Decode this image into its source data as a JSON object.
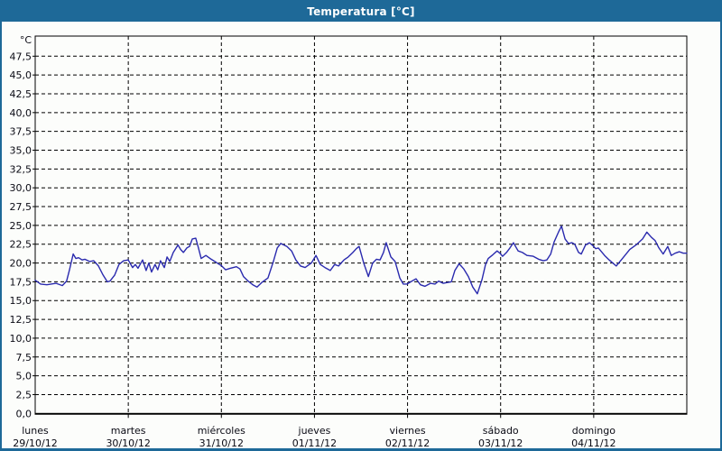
{
  "window": {
    "title": "Temperatura [°C]",
    "title_bar_color": "#1e6998",
    "border_color": "#1e6998",
    "background_color": "#fcfdfb"
  },
  "chart_data": {
    "type": "line",
    "title": "Temperatura [°C]",
    "y_unit_label": "°C",
    "ylim": [
      0,
      50
    ],
    "y_tick_step": 2.5,
    "y_tick_labels": [
      "0,0",
      "2,5",
      "5,0",
      "7,5",
      "10,0",
      "12,5",
      "15,0",
      "17,5",
      "20,0",
      "22,5",
      "25,0",
      "27,5",
      "30,0",
      "32,5",
      "35,0",
      "37,5",
      "40,0",
      "42,5",
      "45,0",
      "47,5"
    ],
    "grid": "dashed",
    "grid_color": "#000000",
    "x_hours_range": [
      0,
      168
    ],
    "x_days": [
      {
        "weekday": "lunes",
        "date": "29/10/12"
      },
      {
        "weekday": "martes",
        "date": "30/10/12"
      },
      {
        "weekday": "miércoles",
        "date": "31/10/12"
      },
      {
        "weekday": "jueves",
        "date": "01/11/12"
      },
      {
        "weekday": "viernes",
        "date": "02/11/12"
      },
      {
        "weekday": "sábado",
        "date": "03/11/12"
      },
      {
        "weekday": "domingo",
        "date": "04/11/12"
      }
    ],
    "series": [
      {
        "name": "Temperatura",
        "color": "#2a2aae",
        "points": [
          [
            0,
            17.7
          ],
          [
            1.4,
            17.2
          ],
          [
            3,
            17.1
          ],
          [
            5.4,
            17.3
          ],
          [
            7,
            17.0
          ],
          [
            8.1,
            17.6
          ],
          [
            8.8,
            19.0
          ],
          [
            9.8,
            21.2
          ],
          [
            10.5,
            20.6
          ],
          [
            11.2,
            20.7
          ],
          [
            12.1,
            20.4
          ],
          [
            12.8,
            20.5
          ],
          [
            14,
            20.2
          ],
          [
            15.1,
            20.3
          ],
          [
            16.3,
            19.6
          ],
          [
            17.5,
            18.4
          ],
          [
            18.6,
            17.5
          ],
          [
            19.3,
            17.6
          ],
          [
            20.5,
            18.4
          ],
          [
            21.6,
            19.8
          ],
          [
            22.8,
            20.3
          ],
          [
            24,
            20.4
          ],
          [
            25.1,
            19.4
          ],
          [
            25.8,
            19.8
          ],
          [
            26.5,
            19.3
          ],
          [
            27.7,
            20.4
          ],
          [
            28.6,
            19.0
          ],
          [
            29.3,
            20.0
          ],
          [
            30,
            18.8
          ],
          [
            30.9,
            19.8
          ],
          [
            31.6,
            19.1
          ],
          [
            32.3,
            20.3
          ],
          [
            33.3,
            19.4
          ],
          [
            34,
            20.8
          ],
          [
            34.7,
            20.2
          ],
          [
            35.6,
            21.4
          ],
          [
            36.8,
            22.4
          ],
          [
            37.5,
            21.8
          ],
          [
            38.2,
            21.4
          ],
          [
            39.1,
            22.0
          ],
          [
            39.8,
            22.2
          ],
          [
            40.5,
            23.2
          ],
          [
            41.4,
            23.3
          ],
          [
            42.1,
            22.0
          ],
          [
            42.8,
            20.6
          ],
          [
            44,
            21.0
          ],
          [
            45.1,
            20.6
          ],
          [
            46.3,
            20.2
          ],
          [
            47.5,
            19.8
          ],
          [
            47.9,
            19.7
          ],
          [
            49.1,
            19.1
          ],
          [
            50.3,
            19.3
          ],
          [
            51.9,
            19.5
          ],
          [
            52.8,
            19.2
          ],
          [
            53.7,
            18.2
          ],
          [
            54.9,
            17.6
          ],
          [
            56.1,
            17.1
          ],
          [
            57.2,
            16.8
          ],
          [
            58.4,
            17.4
          ],
          [
            60,
            18.0
          ],
          [
            61.4,
            20.2
          ],
          [
            62.4,
            22.0
          ],
          [
            63.3,
            22.6
          ],
          [
            64.9,
            22.2
          ],
          [
            66.1,
            21.6
          ],
          [
            67.2,
            20.4
          ],
          [
            68.4,
            19.6
          ],
          [
            69.6,
            19.4
          ],
          [
            71.2,
            20.0
          ],
          [
            72.4,
            21.0
          ],
          [
            73.5,
            19.8
          ],
          [
            74.7,
            19.4
          ],
          [
            76.1,
            19.0
          ],
          [
            77.2,
            19.8
          ],
          [
            78.2,
            19.6
          ],
          [
            79.6,
            20.4
          ],
          [
            80.7,
            20.8
          ],
          [
            81.9,
            21.4
          ],
          [
            82.8,
            21.9
          ],
          [
            83.5,
            22.2
          ],
          [
            84.7,
            20.0
          ],
          [
            85.9,
            18.2
          ],
          [
            87,
            20.0
          ],
          [
            88,
            20.5
          ],
          [
            88.9,
            20.4
          ],
          [
            89.8,
            21.4
          ],
          [
            90.5,
            22.7
          ],
          [
            91.7,
            20.8
          ],
          [
            92.8,
            20.2
          ],
          [
            94,
            18.0
          ],
          [
            94.9,
            17.2
          ],
          [
            95.9,
            17.2
          ],
          [
            97.5,
            17.7
          ],
          [
            98.2,
            17.9
          ],
          [
            99.3,
            17.1
          ],
          [
            100.5,
            16.9
          ],
          [
            101.9,
            17.3
          ],
          [
            103.1,
            17.2
          ],
          [
            104,
            17.6
          ],
          [
            105.2,
            17.3
          ],
          [
            106.3,
            17.4
          ],
          [
            107.3,
            17.5
          ],
          [
            108.2,
            19.0
          ],
          [
            109.3,
            19.9
          ],
          [
            110.5,
            19.2
          ],
          [
            111.7,
            18.2
          ],
          [
            112.8,
            16.8
          ],
          [
            114,
            15.9
          ],
          [
            115.2,
            17.8
          ],
          [
            116.1,
            19.8
          ],
          [
            116.8,
            20.6
          ],
          [
            118,
            21.1
          ],
          [
            119.1,
            21.6
          ],
          [
            119.8,
            21.3
          ],
          [
            120.5,
            20.9
          ],
          [
            121.5,
            21.4
          ],
          [
            122.4,
            22.0
          ],
          [
            123.3,
            22.7
          ],
          [
            124.5,
            21.6
          ],
          [
            125.6,
            21.4
          ],
          [
            126.8,
            21.0
          ],
          [
            128.4,
            20.9
          ],
          [
            129.8,
            20.5
          ],
          [
            131,
            20.3
          ],
          [
            131.9,
            20.4
          ],
          [
            132.9,
            21.2
          ],
          [
            133.8,
            22.8
          ],
          [
            135,
            24.2
          ],
          [
            135.7,
            24.9
          ],
          [
            136.6,
            23.2
          ],
          [
            137.5,
            22.6
          ],
          [
            138.4,
            22.7
          ],
          [
            139.1,
            22.5
          ],
          [
            140.1,
            21.4
          ],
          [
            140.8,
            21.2
          ],
          [
            141.9,
            22.4
          ],
          [
            142.9,
            22.7
          ],
          [
            143.8,
            22.3
          ],
          [
            144.5,
            21.9
          ],
          [
            145.2,
            22.0
          ],
          [
            146.8,
            21.0
          ],
          [
            148,
            20.4
          ],
          [
            149.8,
            19.6
          ],
          [
            151.4,
            20.6
          ],
          [
            153.3,
            21.8
          ],
          [
            154.9,
            22.4
          ],
          [
            156.6,
            23.2
          ],
          [
            157.7,
            24.1
          ],
          [
            158.9,
            23.4
          ],
          [
            159.8,
            23.0
          ],
          [
            160.8,
            22.0
          ],
          [
            161.9,
            21.2
          ],
          [
            163.1,
            22.2
          ],
          [
            164,
            21.0
          ],
          [
            165,
            21.3
          ],
          [
            166.1,
            21.5
          ],
          [
            167.1,
            21.3
          ],
          [
            168,
            21.3
          ]
        ]
      }
    ]
  }
}
